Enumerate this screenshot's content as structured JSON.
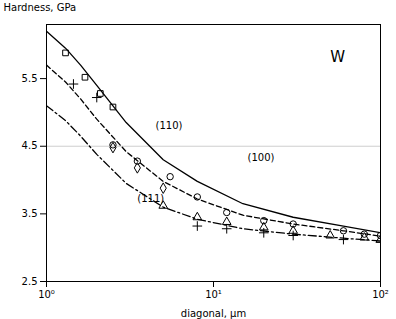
{
  "chart_data": {
    "type": "line",
    "xlabel": "diagonal, μm",
    "ylabel": "Hardness, GPa",
    "log": "x",
    "xlim": [
      1.0,
      100.0
    ],
    "xticks": [
      {
        "value": 1,
        "label": "10⁰"
      },
      {
        "value": 10,
        "label": "10¹"
      },
      {
        "value": 100,
        "label": "10²"
      }
    ],
    "ylim": [
      2.5,
      6.3
    ],
    "yticks": [
      2.5,
      3.5,
      4.5,
      5.5
    ],
    "grid": false,
    "hlines": [
      4.5
    ],
    "series": [
      {
        "type": "line",
        "line_style": "solid",
        "x": [
          1.0,
          1.3,
          1.6,
          2.0,
          3.0,
          5.0,
          8.0,
          15.0,
          30.0,
          60.0,
          100.0
        ],
        "values": [
          6.2,
          5.95,
          5.7,
          5.4,
          4.85,
          4.3,
          3.98,
          3.65,
          3.45,
          3.32,
          3.22
        ]
      },
      {
        "type": "line",
        "line_style": "dashed",
        "x": [
          1.0,
          1.3,
          1.6,
          2.0,
          3.0,
          5.0,
          8.0,
          15.0,
          30.0,
          60.0,
          100.0
        ],
        "values": [
          5.7,
          5.45,
          5.2,
          4.9,
          4.42,
          3.98,
          3.72,
          3.48,
          3.35,
          3.25,
          3.17
        ]
      },
      {
        "type": "line",
        "line_style": "dashdot",
        "x": [
          1.0,
          1.3,
          1.6,
          2.0,
          3.0,
          5.0,
          8.0,
          15.0,
          30.0,
          60.0,
          100.0
        ],
        "values": [
          5.1,
          4.88,
          4.65,
          4.38,
          3.95,
          3.6,
          3.42,
          3.28,
          3.2,
          3.14,
          3.1
        ]
      },
      {
        "type": "scatter",
        "marker": "square",
        "x": [
          1.3,
          1.7,
          2.1,
          2.5
        ],
        "values": [
          5.88,
          5.52,
          5.28,
          5.08
        ]
      },
      {
        "type": "scatter",
        "marker": "plus",
        "x": [
          1.45,
          2.0,
          8.0,
          12.0,
          20.0,
          30.0,
          60.0,
          100.0
        ],
        "values": [
          5.42,
          5.22,
          3.32,
          3.28,
          3.22,
          3.18,
          3.12,
          3.08
        ]
      },
      {
        "type": "scatter",
        "marker": "circle",
        "x": [
          2.5,
          3.5,
          5.5,
          8.0,
          12.0,
          20.0,
          30.0,
          60.0,
          80.0,
          100.0
        ],
        "values": [
          4.52,
          4.28,
          4.05,
          3.75,
          3.52,
          3.4,
          3.35,
          3.25,
          3.2,
          3.18
        ]
      },
      {
        "type": "scatter",
        "marker": "diamond",
        "x": [
          2.5,
          3.5,
          5.0
        ],
        "values": [
          4.48,
          4.18,
          3.88
        ]
      },
      {
        "type": "scatter",
        "marker": "triangle",
        "x": [
          5.0,
          8.0,
          12.0,
          20.0,
          30.0,
          50.0,
          80.0,
          100.0
        ],
        "values": [
          3.62,
          3.45,
          3.38,
          3.3,
          3.25,
          3.18,
          3.15,
          3.12
        ]
      }
    ],
    "annotations": [
      {
        "text": "(110)",
        "x": 4.5,
        "y": 4.75
      },
      {
        "text": "(100)",
        "x": 16.0,
        "y": 4.28
      },
      {
        "text": "(111)",
        "x": 3.5,
        "y": 3.68
      },
      {
        "text": "W",
        "x": 50,
        "y": 5.75
      }
    ]
  }
}
